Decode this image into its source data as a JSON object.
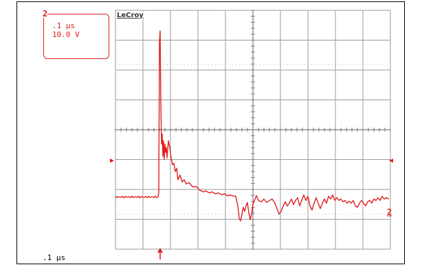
{
  "channel": {
    "number": "2",
    "time_div": ".1 µs",
    "volt_div": "10.0 V",
    "right_label": "2",
    "color": "#e02020"
  },
  "brand": "LeCroy",
  "bottom_time_div": ".1 µs",
  "icons": {
    "trigger_marker": "arrow-up-icon",
    "level_marker_left": "triangle-right-icon",
    "level_marker_right": "triangle-left-icon"
  }
}
